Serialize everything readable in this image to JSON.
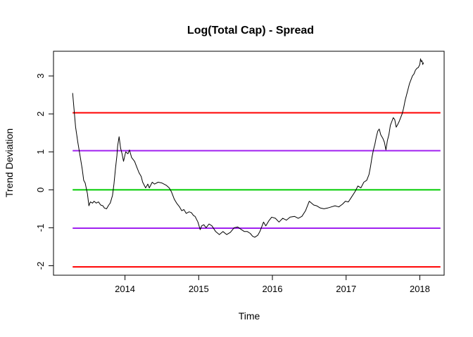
{
  "chart_data": {
    "type": "line",
    "title": "Log(Total Cap) - Spread",
    "xlabel": "Time",
    "ylabel": "Trend Deviation",
    "xlim": [
      2013.03,
      2018.33
    ],
    "ylim": [
      -2.25,
      3.65
    ],
    "x_ticks": [
      2014,
      2015,
      2016,
      2017,
      2018
    ],
    "x_tick_labels": [
      "2014",
      "2015",
      "2016",
      "2017",
      "2018"
    ],
    "y_ticks": [
      -2,
      -1,
      0,
      1,
      2,
      3
    ],
    "y_tick_labels": [
      "-2",
      "-1",
      "0",
      "1",
      "2",
      "3"
    ],
    "grid": false,
    "legend": "none",
    "hlines": [
      {
        "y": 2.03,
        "color": "#ff0000"
      },
      {
        "y": 1.03,
        "color": "#a020f0"
      },
      {
        "y": 0.0,
        "color": "#00cc00"
      },
      {
        "y": -1.01,
        "color": "#a020f0"
      },
      {
        "y": -2.03,
        "color": "#ff0000"
      }
    ],
    "series": [
      {
        "color": "#000000",
        "x": [
          2013.29,
          2013.31,
          2013.33,
          2013.36,
          2013.39,
          2013.42,
          2013.44,
          2013.46,
          2013.49,
          2013.51,
          2013.53,
          2013.56,
          2013.58,
          2013.61,
          2013.64,
          2013.67,
          2013.7,
          2013.72,
          2013.75,
          2013.78,
          2013.8,
          2013.83,
          2013.85,
          2013.87,
          2013.89,
          2013.9,
          2013.92,
          2013.94,
          2013.96,
          2013.98,
          2014.01,
          2014.04,
          2014.06,
          2014.09,
          2014.13,
          2014.16,
          2014.19,
          2014.22,
          2014.24,
          2014.28,
          2014.31,
          2014.33,
          2014.37,
          2014.4,
          2014.45,
          2014.5,
          2014.56,
          2014.6,
          2014.63,
          2014.67,
          2014.7,
          2014.74,
          2014.77,
          2014.8,
          2014.83,
          2014.87,
          2014.9,
          2014.93,
          2014.95,
          2014.99,
          2015.02,
          2015.04,
          2015.07,
          2015.1,
          2015.14,
          2015.18,
          2015.23,
          2015.28,
          2015.33,
          2015.38,
          2015.43,
          2015.48,
          2015.53,
          2015.58,
          2015.62,
          2015.66,
          2015.7,
          2015.73,
          2015.76,
          2015.8,
          2015.83,
          2015.85,
          2015.88,
          2015.91,
          2015.95,
          2015.99,
          2016.04,
          2016.09,
          2016.14,
          2016.19,
          2016.24,
          2016.3,
          2016.35,
          2016.4,
          2016.45,
          2016.47,
          2016.5,
          2016.53,
          2016.56,
          2016.6,
          2016.65,
          2016.7,
          2016.75,
          2016.8,
          2016.85,
          2016.9,
          2016.95,
          2016.99,
          2017.03,
          2017.07,
          2017.12,
          2017.16,
          2017.2,
          2017.24,
          2017.28,
          2017.31,
          2017.33,
          2017.35,
          2017.37,
          2017.39,
          2017.41,
          2017.43,
          2017.45,
          2017.47,
          2017.5,
          2017.52,
          2017.54,
          2017.56,
          2017.58,
          2017.6,
          2017.62,
          2017.64,
          2017.66,
          2017.68,
          2017.7,
          2017.72,
          2017.74,
          2017.76,
          2017.78,
          2017.8,
          2017.82,
          2017.84,
          2017.86,
          2017.88,
          2017.9,
          2017.92,
          2017.94,
          2017.96,
          2017.98,
          2018.0,
          2018.01,
          2018.02,
          2018.03,
          2018.04,
          2018.05
        ],
        "values": [
          2.55,
          2.1,
          1.65,
          1.25,
          0.9,
          0.55,
          0.25,
          0.18,
          -0.1,
          -0.42,
          -0.32,
          -0.35,
          -0.3,
          -0.35,
          -0.32,
          -0.4,
          -0.42,
          -0.48,
          -0.5,
          -0.4,
          -0.35,
          -0.15,
          0.15,
          0.55,
          0.9,
          1.15,
          1.4,
          1.1,
          0.95,
          0.75,
          1.0,
          0.95,
          1.05,
          0.85,
          0.75,
          0.6,
          0.45,
          0.35,
          0.2,
          0.05,
          0.15,
          0.05,
          0.2,
          0.15,
          0.2,
          0.18,
          0.12,
          0.05,
          -0.05,
          -0.25,
          -0.35,
          -0.45,
          -0.55,
          -0.52,
          -0.62,
          -0.58,
          -0.6,
          -0.68,
          -0.7,
          -0.85,
          -1.05,
          -0.95,
          -0.92,
          -1.0,
          -0.9,
          -0.95,
          -1.1,
          -1.18,
          -1.1,
          -1.18,
          -1.12,
          -1.0,
          -0.98,
          -1.05,
          -1.1,
          -1.1,
          -1.15,
          -1.22,
          -1.25,
          -1.2,
          -1.1,
          -1.0,
          -0.85,
          -0.95,
          -0.82,
          -0.72,
          -0.75,
          -0.85,
          -0.75,
          -0.8,
          -0.72,
          -0.7,
          -0.75,
          -0.7,
          -0.55,
          -0.45,
          -0.3,
          -0.35,
          -0.4,
          -0.42,
          -0.48,
          -0.5,
          -0.48,
          -0.45,
          -0.42,
          -0.45,
          -0.38,
          -0.3,
          -0.32,
          -0.2,
          -0.05,
          0.1,
          0.05,
          0.2,
          0.25,
          0.4,
          0.6,
          0.85,
          1.05,
          1.2,
          1.4,
          1.55,
          1.6,
          1.45,
          1.35,
          1.25,
          1.05,
          1.3,
          1.45,
          1.7,
          1.8,
          1.9,
          1.85,
          1.65,
          1.72,
          1.8,
          1.9,
          2.0,
          2.15,
          2.35,
          2.5,
          2.65,
          2.8,
          2.9,
          3.0,
          3.05,
          3.15,
          3.2,
          3.22,
          3.3,
          3.45,
          3.38,
          3.4,
          3.3,
          3.35
        ]
      }
    ]
  }
}
